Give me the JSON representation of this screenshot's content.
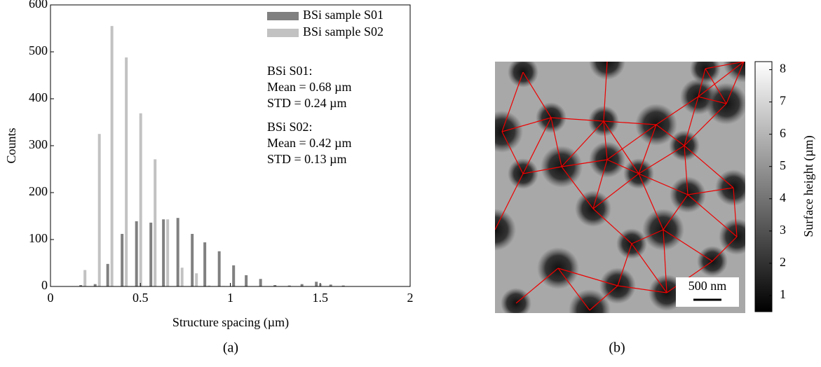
{
  "chart_data": {
    "type": "bar",
    "x_label": "Structure spacing (µm)",
    "y_label": "Counts",
    "caption": "(a)",
    "x": [
      0.18,
      0.26,
      0.33,
      0.41,
      0.49,
      0.57,
      0.64,
      0.72,
      0.8,
      0.87,
      0.95,
      1.03,
      1.1,
      1.18,
      1.26,
      1.34,
      1.41,
      1.49,
      1.57,
      1.64
    ],
    "series": [
      {
        "name": "BSi sample S01",
        "color": "#808080",
        "values": [
          3,
          5,
          48,
          112,
          139,
          136,
          143,
          146,
          112,
          94,
          75,
          45,
          24,
          16,
          3,
          2,
          5,
          10,
          4,
          2
        ]
      },
      {
        "name": "BSi sample S02",
        "color": "#c2c2c2",
        "values": [
          35,
          325,
          555,
          488,
          369,
          271,
          143,
          40,
          28,
          2,
          1,
          0,
          0,
          0,
          0,
          0,
          0,
          6,
          0,
          0
        ]
      }
    ],
    "xlim": [
      0,
      2
    ],
    "xticks": [
      0,
      0.5,
      1,
      1.5,
      2
    ],
    "ylim": [
      0,
      600
    ],
    "yticks": [
      0,
      100,
      200,
      300,
      400,
      500,
      600
    ],
    "annotations": [
      "BSi S01:",
      "Mean = 0.68 µm",
      "STD = 0.24 µm",
      "BSi S02:",
      "Mean = 0.42 µm",
      "STD = 0.13 µm"
    ],
    "legend": "upper right"
  },
  "figure_b": {
    "colorbar_label": "Surface height (µm)",
    "clim": [
      0.5,
      8.25
    ],
    "colorbar_ticks": [
      1,
      2,
      3,
      4,
      5,
      6,
      7,
      8
    ],
    "scale_bar": "500 nm",
    "caption": "(b)"
  }
}
